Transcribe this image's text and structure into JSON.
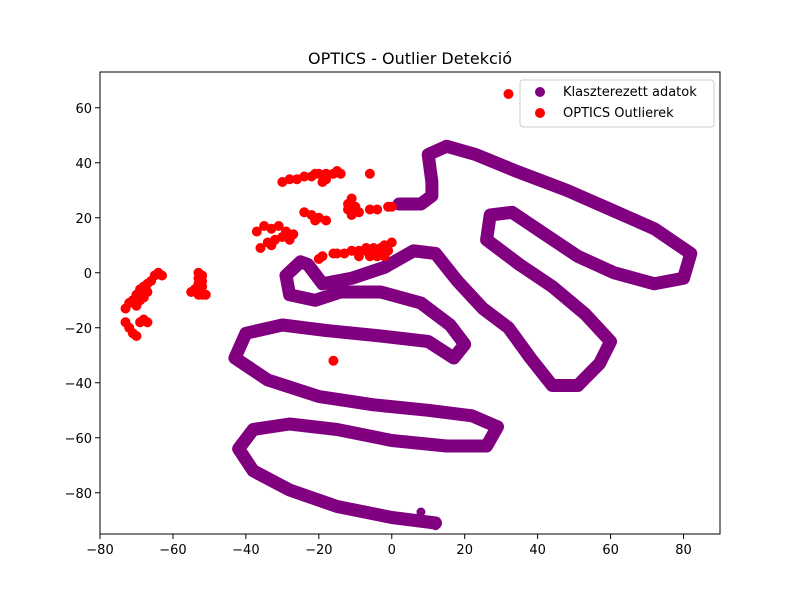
{
  "chart_data": {
    "type": "scatter",
    "title": "OPTICS - Outlier Detekció",
    "xlabel": "",
    "ylabel": "",
    "xlim": [
      -80,
      90
    ],
    "ylim": [
      -95,
      73
    ],
    "xticks": [
      -80,
      -60,
      -40,
      -20,
      0,
      20,
      40,
      60,
      80
    ],
    "yticks": [
      -80,
      -60,
      -40,
      -20,
      0,
      20,
      40,
      60
    ],
    "xtick_labels": [
      "−80",
      "−60",
      "−40",
      "−20",
      "0",
      "20",
      "40",
      "60",
      "80"
    ],
    "ytick_labels": [
      "−80",
      "−60",
      "−40",
      "−20",
      "0",
      "20",
      "40",
      "60"
    ],
    "grid": false,
    "legend_position": "top-right",
    "series": [
      {
        "name": "Klaszterezett adatok",
        "color": "#800080",
        "curve": [
          [
            12,
            -91
          ],
          [
            0,
            -89
          ],
          [
            -15,
            -85
          ],
          [
            -28,
            -79
          ],
          [
            -38,
            -72
          ],
          [
            -42,
            -64
          ],
          [
            -38,
            -57
          ],
          [
            -28,
            -55
          ],
          [
            -15,
            -57
          ],
          [
            0,
            -61
          ],
          [
            15,
            -63
          ],
          [
            26,
            -63
          ],
          [
            29,
            -56
          ],
          [
            22,
            -52
          ],
          [
            10,
            -50
          ],
          [
            -5,
            -48
          ],
          [
            -20,
            -45
          ],
          [
            -34,
            -39
          ],
          [
            -43,
            -31
          ],
          [
            -40,
            -22
          ],
          [
            -30,
            -19
          ],
          [
            -18,
            -21
          ],
          [
            -3,
            -23
          ],
          [
            10,
            -25
          ],
          [
            17,
            -31
          ],
          [
            20,
            -26
          ],
          [
            16,
            -19
          ],
          [
            8,
            -11
          ],
          [
            -3,
            -7
          ],
          [
            -14,
            -7
          ],
          [
            -21,
            -10
          ],
          [
            -28,
            -8
          ],
          [
            -29,
            -1
          ],
          [
            -25,
            4
          ],
          [
            -23,
            3
          ],
          [
            -19,
            -4
          ],
          [
            -11,
            -2
          ],
          [
            -2,
            2
          ],
          [
            6,
            8
          ],
          [
            12,
            7
          ],
          [
            18,
            -3
          ],
          [
            25,
            -13
          ],
          [
            32,
            -20
          ],
          [
            38,
            -31
          ],
          [
            44,
            -41
          ],
          [
            51,
            -41
          ],
          [
            57,
            -33
          ],
          [
            60,
            -25
          ],
          [
            53,
            -15
          ],
          [
            44,
            -5
          ],
          [
            35,
            3
          ],
          [
            26,
            12
          ],
          [
            27,
            21
          ],
          [
            33,
            22
          ],
          [
            42,
            14
          ],
          [
            51,
            6
          ],
          [
            61,
            0
          ],
          [
            72,
            -4
          ],
          [
            80,
            -2
          ],
          [
            82,
            7
          ],
          [
            72,
            16
          ],
          [
            60,
            23
          ],
          [
            48,
            30
          ],
          [
            34,
            37
          ],
          [
            23,
            43
          ],
          [
            15,
            46
          ],
          [
            10,
            43
          ],
          [
            11,
            33
          ],
          [
            11,
            28
          ],
          [
            8,
            25
          ],
          [
            2,
            25
          ]
        ],
        "points": [
          [
            8,
            -87
          ],
          [
            12,
            -92
          ],
          [
            10,
            -91
          ]
        ]
      },
      {
        "name": "OPTICS Outlierek",
        "color": "#ff0000",
        "points": [
          [
            32,
            65
          ],
          [
            -6,
            36
          ],
          [
            -16,
            -32
          ],
          [
            -30,
            33
          ],
          [
            -28,
            34
          ],
          [
            -26,
            34
          ],
          [
            -24,
            35
          ],
          [
            -22,
            35
          ],
          [
            -20,
            36
          ],
          [
            -18,
            36
          ],
          [
            -16,
            36
          ],
          [
            -15,
            37
          ],
          [
            -14,
            36
          ],
          [
            -19,
            33
          ],
          [
            -18,
            34
          ],
          [
            -21,
            36
          ],
          [
            -12,
            25
          ],
          [
            -11,
            27
          ],
          [
            -10,
            24
          ],
          [
            -12,
            23
          ],
          [
            -11,
            21
          ],
          [
            -9,
            22
          ],
          [
            -6,
            23
          ],
          [
            -4,
            23
          ],
          [
            -1,
            24
          ],
          [
            0,
            24
          ],
          [
            -24,
            22
          ],
          [
            -22,
            21
          ],
          [
            -20,
            20
          ],
          [
            -18,
            19
          ],
          [
            -21,
            19
          ],
          [
            -37,
            15
          ],
          [
            -35,
            17
          ],
          [
            -33,
            16
          ],
          [
            -31,
            17
          ],
          [
            -29,
            15
          ],
          [
            -27,
            14
          ],
          [
            -30,
            13
          ],
          [
            -28,
            12
          ],
          [
            -32,
            12
          ],
          [
            -34,
            11
          ],
          [
            -36,
            9
          ],
          [
            -33,
            10
          ],
          [
            -20,
            5
          ],
          [
            -19,
            6
          ],
          [
            -16,
            7
          ],
          [
            -15,
            7
          ],
          [
            -13,
            7
          ],
          [
            -11,
            8
          ],
          [
            -9,
            8
          ],
          [
            -7,
            8
          ],
          [
            -5,
            9
          ],
          [
            -3,
            9
          ],
          [
            -2,
            10
          ],
          [
            0,
            11
          ],
          [
            -9,
            6
          ],
          [
            -6,
            6
          ],
          [
            -4,
            6
          ],
          [
            -2,
            6
          ],
          [
            -7,
            9
          ],
          [
            -4,
            8
          ],
          [
            -1,
            8
          ],
          [
            -53,
            0
          ],
          [
            -52,
            -1
          ],
          [
            -53,
            -2
          ],
          [
            -52,
            -3
          ],
          [
            -53,
            -4
          ],
          [
            -52,
            -5
          ],
          [
            -54,
            -6
          ],
          [
            -55,
            -7
          ],
          [
            -52,
            -8
          ],
          [
            -53,
            -8
          ],
          [
            -51,
            -8
          ],
          [
            -64,
            0
          ],
          [
            -63,
            -1
          ],
          [
            -65,
            -1
          ],
          [
            -66,
            -3
          ],
          [
            -67,
            -4
          ],
          [
            -68,
            -5
          ],
          [
            -69,
            -6
          ],
          [
            -70,
            -8
          ],
          [
            -71,
            -10
          ],
          [
            -72,
            -11
          ],
          [
            -73,
            -13
          ],
          [
            -67,
            -7
          ],
          [
            -68,
            -9
          ],
          [
            -69,
            -10
          ],
          [
            -70,
            -12
          ],
          [
            -73,
            -18
          ],
          [
            -72,
            -20
          ],
          [
            -71,
            -22
          ],
          [
            -70,
            -23
          ],
          [
            -69,
            -18
          ],
          [
            -68,
            -17
          ],
          [
            -67,
            -18
          ]
        ]
      }
    ]
  }
}
